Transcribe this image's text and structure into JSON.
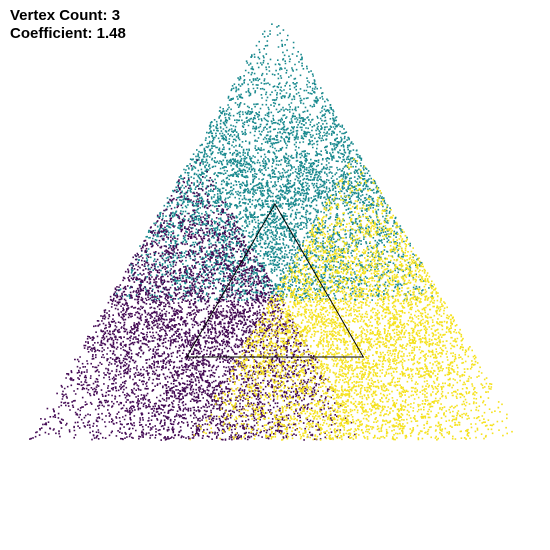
{
  "hud": {
    "vertex_count_label": "Vertex Count:",
    "vertex_count": 3,
    "coefficient_label": "Coefficient:",
    "coefficient": 1.48
  },
  "colors": {
    "background": "#ffffff",
    "vertex_1": "#1b8a8f",
    "vertex_2": "#440a54",
    "vertex_3": "#f5e21f",
    "outline": "#000000",
    "text": "#000000"
  }
}
